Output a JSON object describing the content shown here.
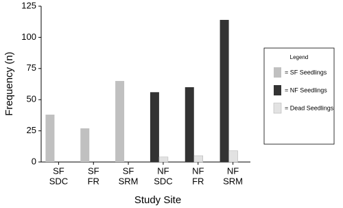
{
  "chart_data": {
    "type": "bar",
    "x_label": "Study Site",
    "y_label": "Frequency (n)",
    "categories": [
      [
        "SF",
        "SDC"
      ],
      [
        "SF",
        "FR"
      ],
      [
        "SF",
        "SRM"
      ],
      [
        "NF",
        "SDC"
      ],
      [
        "NF",
        "FR"
      ],
      [
        "NF",
        "SRM"
      ]
    ],
    "series": [
      {
        "name": "= SF Seedlings",
        "color": "#c0c0c0",
        "values": [
          38,
          27,
          65,
          null,
          null,
          null
        ]
      },
      {
        "name": "= NF Seedlings",
        "color": "#333333",
        "values": [
          null,
          null,
          null,
          56,
          60,
          114
        ]
      },
      {
        "name": "= Dead Seedlings",
        "color": "#e2e2e2",
        "values": [
          null,
          null,
          null,
          4,
          5,
          9
        ]
      }
    ],
    "ylim": [
      0,
      125
    ],
    "yticks": [
      0,
      25,
      50,
      75,
      100,
      125
    ],
    "legend_title": "Legend",
    "legend": "right"
  }
}
